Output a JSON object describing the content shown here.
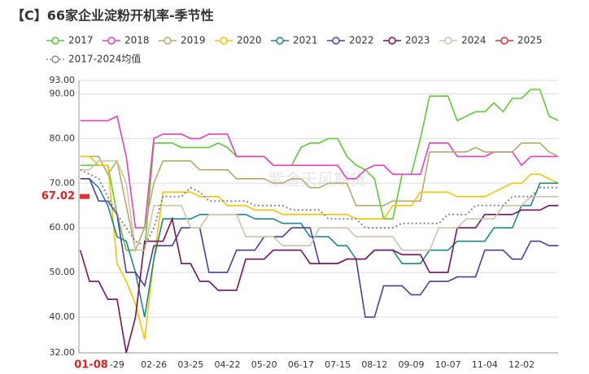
{
  "chart_data": {
    "type": "line",
    "title": "【C】66家企业淀粉开机率-季节性",
    "watermark": "紫金天风期货",
    "categories": [
      null,
      "01-08",
      null,
      null,
      "-29",
      null,
      null,
      null,
      "02-26",
      null,
      null,
      null,
      "03-25",
      null,
      null,
      null,
      "04-22",
      null,
      null,
      null,
      "05-20",
      null,
      null,
      null,
      "06-17",
      null,
      null,
      null,
      "07-15",
      null,
      null,
      null,
      "08-12",
      null,
      null,
      null,
      "09-09",
      null,
      null,
      null,
      "10-07",
      null,
      null,
      null,
      "11-04",
      null,
      null,
      null,
      "12-02",
      null,
      null,
      null,
      null
    ],
    "ylim": [
      32,
      93
    ],
    "yticks": [
      {
        "value": 32,
        "label": "32.00"
      },
      {
        "value": 40,
        "label": "40.00"
      },
      {
        "value": 50,
        "label": "50.00"
      },
      {
        "value": 60,
        "label": "60.00"
      },
      {
        "value": 70,
        "label": "70.00"
      },
      {
        "value": 80,
        "label": "80.00"
      },
      {
        "value": 90,
        "label": "90.00"
      },
      {
        "value": 93,
        "label": "93.00"
      }
    ],
    "grid": true,
    "series": [
      {
        "name": "2017",
        "color": "#5ccc30",
        "values": [
          74,
          74,
          74,
          74,
          63,
          55,
          55,
          55,
          79,
          79,
          79,
          78,
          78,
          78,
          78,
          79,
          78,
          76,
          76,
          76,
          76,
          74,
          74,
          74,
          78,
          79,
          79,
          80,
          80,
          76,
          74,
          73,
          71,
          62,
          62,
          72,
          72,
          80,
          89.5,
          89.5,
          89.5,
          84,
          85,
          86,
          86,
          88,
          86,
          89,
          89,
          91,
          91,
          85,
          84
        ]
      },
      {
        "name": "2018",
        "color": "#e83fbf",
        "values": [
          84,
          84,
          84,
          84,
          85,
          76,
          60,
          60,
          80,
          81,
          81,
          81,
          80,
          80,
          81,
          81,
          81,
          76,
          76,
          76,
          76,
          74,
          74,
          74,
          74,
          74,
          74,
          74,
          74,
          71,
          71,
          73,
          74,
          74,
          72,
          72,
          72,
          72,
          79,
          79,
          79,
          76,
          76,
          76,
          76,
          77,
          77,
          77,
          74,
          76,
          76,
          76,
          76
        ]
      },
      {
        "name": "2019",
        "color": "#b8a86a",
        "values": [
          76,
          76,
          76,
          72,
          75,
          65,
          55,
          60,
          70,
          75,
          75,
          75,
          75,
          73,
          73,
          73,
          73,
          71,
          71,
          71,
          71,
          70,
          70,
          71,
          71,
          69,
          69,
          70,
          70,
          70,
          65,
          65,
          65,
          65,
          66,
          66,
          66,
          66,
          77,
          77,
          77,
          77,
          77,
          78,
          77,
          77,
          77,
          77,
          79,
          79,
          79,
          77,
          76
        ]
      },
      {
        "name": "2020",
        "color": "#f5c400",
        "values": [
          76,
          76,
          74,
          74,
          52,
          48,
          43,
          35,
          53,
          68,
          68,
          68,
          68,
          67,
          67,
          67,
          65,
          65,
          65,
          64,
          64,
          64,
          63,
          63,
          63,
          63,
          63,
          63,
          63,
          63,
          62,
          62,
          62,
          62,
          65,
          65,
          65,
          68,
          68,
          68,
          68,
          67,
          67,
          67,
          67,
          68,
          69,
          70,
          70,
          72,
          72,
          71,
          70
        ]
      },
      {
        "name": "2021",
        "color": "#1a8a8a",
        "values": [
          71,
          71,
          69,
          65,
          58,
          57,
          50,
          40,
          53,
          62,
          62,
          62,
          62,
          63,
          63,
          63,
          63,
          63,
          63,
          62,
          62,
          62,
          61,
          61,
          61,
          58,
          58,
          58,
          56,
          56,
          53,
          53,
          55,
          55,
          55,
          52,
          52,
          52,
          55,
          55,
          55,
          57,
          57,
          57,
          57,
          60,
          60,
          60,
          65,
          65,
          70,
          70,
          70
        ]
      },
      {
        "name": "2022",
        "color": "#4b3fa0",
        "values": [
          71,
          71,
          66,
          66,
          63,
          50,
          50,
          47,
          56,
          56,
          56,
          60,
          60,
          60,
          50,
          50,
          50,
          55,
          55,
          55,
          58,
          58,
          58,
          60,
          60,
          60,
          52,
          52,
          52,
          53,
          53,
          40,
          40,
          47,
          47,
          47,
          45,
          45,
          48,
          48,
          48,
          49,
          49,
          49,
          55,
          55,
          55,
          53,
          53,
          57,
          57,
          56,
          56
        ]
      },
      {
        "name": "2023",
        "color": "#7a1060",
        "values": [
          55,
          48,
          48,
          44,
          44,
          32,
          40,
          57,
          57,
          57,
          62,
          52,
          52,
          48,
          48,
          46,
          46,
          46,
          53,
          53,
          53,
          55,
          55,
          55,
          55,
          52,
          52,
          52,
          52,
          53,
          53,
          53,
          55,
          55,
          55,
          54,
          54,
          54,
          50,
          50,
          50,
          60,
          60,
          60,
          63,
          63,
          63,
          63,
          64,
          64,
          64,
          65,
          65
        ]
      },
      {
        "name": "2024",
        "color": "#cfc3a8",
        "values": [
          73,
          73,
          75,
          75,
          75,
          70,
          55,
          55,
          65,
          65,
          65,
          65,
          60,
          60,
          63,
          63,
          63,
          63,
          58,
          58,
          58,
          58,
          56,
          56,
          56,
          56,
          60,
          60,
          60,
          60,
          58,
          58,
          58,
          58,
          58,
          55,
          55,
          55,
          55,
          60,
          60,
          60,
          62,
          62,
          62,
          62,
          65,
          65,
          65,
          67,
          67,
          67,
          67
        ]
      },
      {
        "name": "2025",
        "color": "#e03030",
        "values": [
          67.02,
          null,
          null,
          null,
          null,
          null,
          null,
          null,
          null,
          null,
          null,
          null,
          null,
          null,
          null,
          null,
          null,
          null,
          null,
          null,
          null,
          null,
          null,
          null,
          null,
          null,
          null,
          null,
          null,
          null,
          null,
          null,
          null,
          null,
          null,
          null,
          null,
          null,
          null,
          null,
          null,
          null,
          null,
          null,
          null,
          null,
          null,
          null,
          null,
          null,
          null,
          null,
          null
        ]
      },
      {
        "name": "2017-2024均值",
        "color": "#888888",
        "dashed": true,
        "values": [
          73,
          72,
          71,
          67,
          63,
          60,
          57,
          56,
          60,
          67,
          67,
          67,
          69,
          68,
          66,
          66,
          66,
          66,
          66,
          65,
          65,
          65,
          65,
          64,
          64,
          64,
          64,
          62,
          62,
          62,
          62,
          60,
          60,
          60,
          60,
          61,
          61,
          61,
          61,
          61,
          63,
          63,
          63,
          65,
          65,
          65,
          65,
          67,
          67,
          67,
          69,
          69,
          69
        ]
      }
    ]
  }
}
